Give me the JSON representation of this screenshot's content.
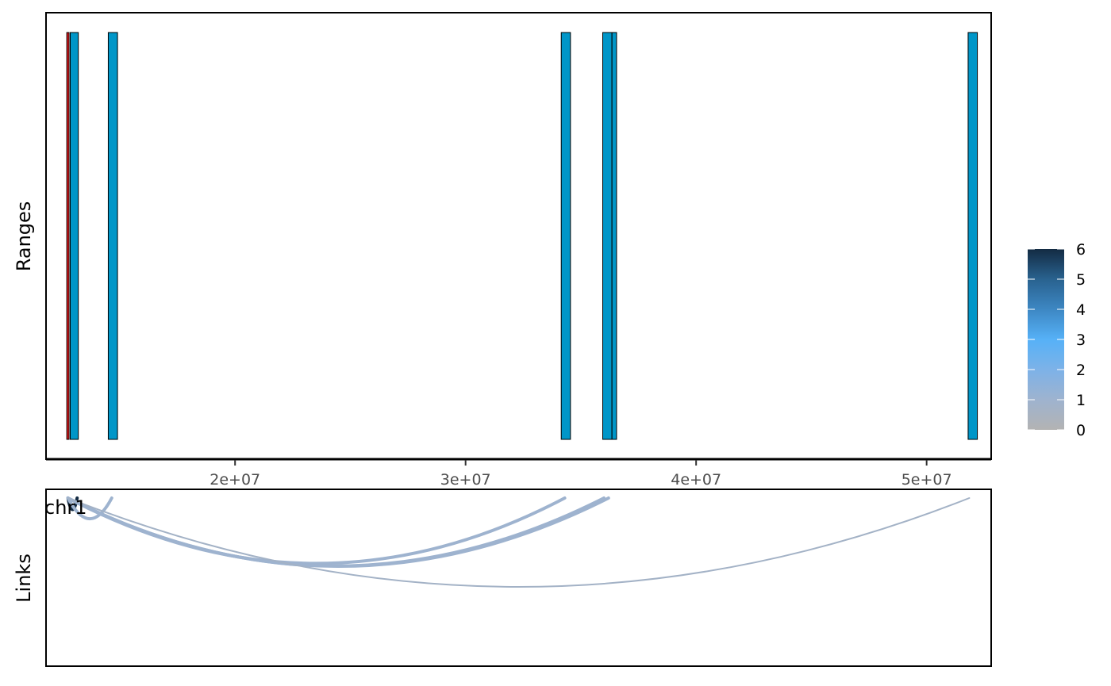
{
  "chart_data": [
    {
      "type": "bar",
      "panel": "ranges",
      "ylabel": "Ranges",
      "xlim": [
        11800000,
        52800000
      ],
      "x_ticks": [
        20000000,
        30000000,
        40000000,
        50000000
      ],
      "x_tick_labels": [
        "2e+07",
        "3e+07",
        "4e+07",
        "5e+07"
      ],
      "grid": false,
      "fill_color": "#0096c8",
      "highlight_color": "#e41a1c",
      "ranges": [
        {
          "start": 12700000,
          "end": 12800000,
          "highlight": true
        },
        {
          "start": 12850000,
          "end": 13200000,
          "highlight": false
        },
        {
          "start": 14500000,
          "end": 14900000,
          "highlight": false
        },
        {
          "start": 34150000,
          "end": 34550000,
          "highlight": false
        },
        {
          "start": 35950000,
          "end": 36350000,
          "highlight": false
        },
        {
          "start": 36350000,
          "end": 36550000,
          "highlight": false
        },
        {
          "start": 51800000,
          "end": 52200000,
          "highlight": false
        }
      ]
    },
    {
      "type": "arc",
      "panel": "links",
      "ylabel": "Links",
      "xlim": [
        11800000,
        52800000
      ],
      "chromosome_label": "chr1",
      "links": [
        {
          "from": 12750000,
          "to": 13150000,
          "score": 6
        },
        {
          "from": 12750000,
          "to": 14650000,
          "score": 1
        },
        {
          "from": 12750000,
          "to": 34300000,
          "score": 1
        },
        {
          "from": 12750000,
          "to": 36000000,
          "score": 1
        },
        {
          "from": 12750000,
          "to": 36200000,
          "score": 1
        },
        {
          "from": 12750000,
          "to": 51850000,
          "score": 0
        }
      ]
    }
  ],
  "legend": {
    "position": "right",
    "min": 0,
    "max": 6,
    "labels": [
      "0",
      "1",
      "2",
      "3",
      "4",
      "5",
      "6"
    ],
    "colors": [
      "#b3b3b3",
      "#9eb3cf",
      "#7db2e8",
      "#56b1f7",
      "#3d87c3",
      "#29628f",
      "#132b43"
    ]
  }
}
